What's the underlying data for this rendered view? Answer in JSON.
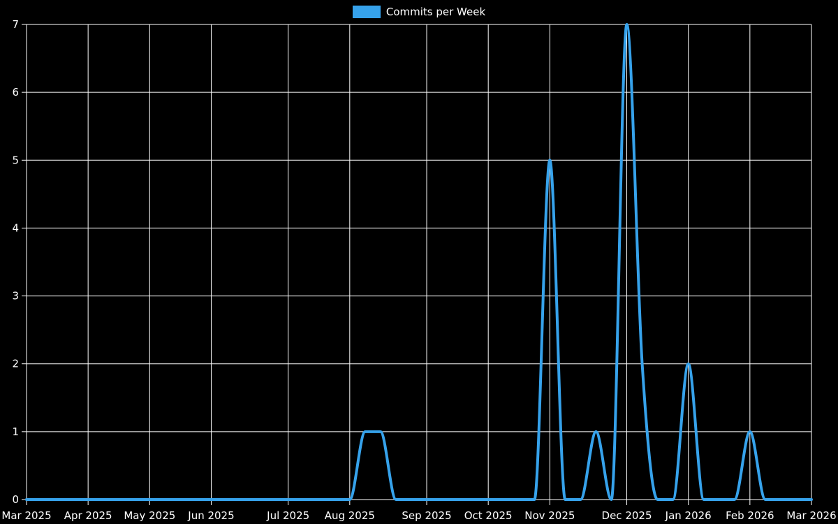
{
  "legend": {
    "label": "Commits per Week",
    "swatch_color": "#36a2eb"
  },
  "chart_data": {
    "type": "line",
    "title": "Commits per Week",
    "legend_position": "top-center",
    "grid": true,
    "x_unit": "week-index",
    "xlim_weeks": [
      0,
      51
    ],
    "ylim": [
      0,
      7
    ],
    "y_ticks": [
      0,
      1,
      2,
      3,
      4,
      5,
      6,
      7
    ],
    "x_ticks": [
      {
        "label": "Mar 2025",
        "week": 0
      },
      {
        "label": "Apr 2025",
        "week": 4
      },
      {
        "label": "May 2025",
        "week": 8
      },
      {
        "label": "Jun 2025",
        "week": 12
      },
      {
        "label": "Jul 2025",
        "week": 17
      },
      {
        "label": "Aug 2025",
        "week": 21
      },
      {
        "label": "Sep 2025",
        "week": 26
      },
      {
        "label": "Oct 2025",
        "week": 30
      },
      {
        "label": "Nov 2025",
        "week": 34
      },
      {
        "label": "Dec 2025",
        "week": 39
      },
      {
        "label": "Jan 2026",
        "week": 43
      },
      {
        "label": "Feb 2026",
        "week": 47
      },
      {
        "label": "Mar 2026",
        "week": 51
      }
    ],
    "series": [
      {
        "name": "Commits per Week",
        "color": "#36a2eb",
        "line_width": 4,
        "values": [
          0,
          0,
          0,
          0,
          0,
          0,
          0,
          0,
          0,
          0,
          0,
          0,
          0,
          0,
          0,
          0,
          0,
          0,
          0,
          0,
          0,
          0,
          1,
          1,
          0,
          0,
          0,
          0,
          0,
          0,
          0,
          0,
          0,
          0,
          5,
          0,
          0,
          1,
          0,
          7,
          2,
          0,
          0,
          2,
          0,
          0,
          0,
          1,
          0,
          0,
          0,
          0
        ]
      }
    ],
    "notable_points": [
      {
        "near_month": "Aug 2025",
        "weeks": 2,
        "value": 1
      },
      {
        "near_month": "Nov 2025",
        "weeks": 1,
        "value": 5
      },
      {
        "near_month": "late Nov 2025",
        "weeks": 1,
        "value": 1
      },
      {
        "near_month": "Dec 2025",
        "weeks": 1,
        "value": 7
      },
      {
        "near_month": "mid Dec 2025",
        "weeks": 1,
        "value": 2
      },
      {
        "near_month": "Jan 2026",
        "weeks": 1,
        "value": 2
      },
      {
        "near_month": "Feb 2026",
        "weeks": 1,
        "value": 1
      }
    ],
    "colors": {
      "background": "#000000",
      "grid": "#ffffff",
      "axis": "#ffffff",
      "text": "#ffffff"
    }
  }
}
